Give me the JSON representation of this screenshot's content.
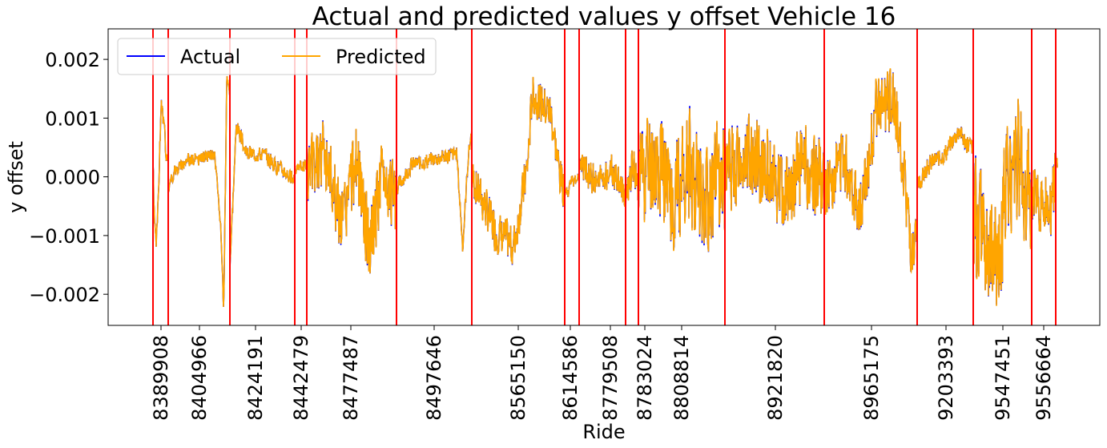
{
  "chart_data": {
    "type": "line",
    "title": "Actual and predicted values y offset Vehicle 16",
    "xlabel": "Ride",
    "ylabel": "y offset",
    "ylim": [
      -0.00253,
      0.00252
    ],
    "x_tick_labels": [
      "8389908",
      "8404966",
      "8424191",
      "8442479",
      "8477487",
      "8497646",
      "8565150",
      "8614586",
      "8779508",
      "8783024",
      "8808814",
      "8921820",
      "8965175",
      "9203393",
      "9547451",
      "9556664"
    ],
    "y_ticks": [
      {
        "value": 0.002,
        "label": "0.002"
      },
      {
        "value": 0.001,
        "label": "0.001"
      },
      {
        "value": 0.0,
        "label": "0.000"
      },
      {
        "value": -0.001,
        "label": "−0.001"
      },
      {
        "value": -0.002,
        "label": "−0.002"
      }
    ],
    "legend": {
      "placement": "top-left",
      "columns": 2
    },
    "grid": false,
    "ride_boundary_color": "#ff0000",
    "series": [
      {
        "name": "Actual",
        "color": "#0000ff"
      },
      {
        "name": "Predicted",
        "color": "#ffa500"
      }
    ],
    "segments": [
      {
        "profile": [
          [
            0,
            0.0002
          ],
          [
            0.1,
            -0.0008
          ],
          [
            0.25,
            -0.0011
          ],
          [
            0.4,
            0.0001
          ],
          [
            0.55,
            0.0012
          ],
          [
            0.75,
            0.0008
          ],
          [
            0.9,
            0.0002
          ],
          [
            1,
            0.0003
          ]
        ],
        "amp": 0.0002,
        "seed": 1
      },
      {
        "profile": [
          [
            0,
            -0.0002
          ],
          [
            0.1,
            0.0001
          ],
          [
            0.3,
            0.0003
          ],
          [
            0.5,
            0.0003
          ],
          [
            0.75,
            0.0004
          ],
          [
            0.85,
            -0.0008
          ],
          [
            0.9,
            -0.0023
          ],
          [
            0.95,
            0.0017
          ],
          [
            1,
            0.0014
          ]
        ],
        "amp": 0.00012,
        "seed": 2
      },
      {
        "profile": [
          [
            0,
            -0.0015
          ],
          [
            0.1,
            0.0009
          ],
          [
            0.25,
            0.0004
          ],
          [
            0.5,
            0.0004
          ],
          [
            0.7,
            0.0002
          ],
          [
            0.85,
            0.0001
          ],
          [
            1,
            -0.0001
          ]
        ],
        "amp": 0.00015,
        "seed": 3
      },
      {
        "profile": [
          [
            0,
            0.0001
          ],
          [
            0.5,
            0.0002
          ],
          [
            1,
            0.0002
          ]
        ],
        "amp": 0.00012,
        "seed": 4
      },
      {
        "profile": [
          [
            0,
            0.0
          ],
          [
            0.2,
            0.0004
          ],
          [
            0.4,
            -0.0008
          ],
          [
            0.55,
            0.0003
          ],
          [
            0.7,
            -0.0012
          ],
          [
            0.85,
            0.0001
          ],
          [
            1,
            -0.0005
          ]
        ],
        "amp": 0.0007,
        "seed": 5
      },
      {
        "profile": [
          [
            0,
            -0.0002
          ],
          [
            0.2,
            0.0002
          ],
          [
            0.5,
            0.0003
          ],
          [
            0.8,
            0.0004
          ],
          [
            0.88,
            -0.0012
          ],
          [
            0.95,
            0.0003
          ],
          [
            1,
            0.0008
          ]
        ],
        "amp": 0.00015,
        "seed": 6
      },
      {
        "profile": [
          [
            0,
            0.0
          ],
          [
            0.25,
            -0.0009
          ],
          [
            0.45,
            -0.0012
          ],
          [
            0.6,
            0.0002
          ],
          [
            0.65,
            0.0014
          ],
          [
            0.85,
            0.0011
          ],
          [
            0.95,
            0.0
          ],
          [
            1,
            -0.0002
          ]
        ],
        "amp": 0.0004,
        "seed": 7
      },
      {
        "profile": [
          [
            0,
            -0.0003
          ],
          [
            0.5,
            -0.0001
          ],
          [
            1,
            0.0
          ]
        ],
        "amp": 0.00015,
        "seed": 8
      },
      {
        "profile": [
          [
            0,
            0.0002
          ],
          [
            0.4,
            -0.0001
          ],
          [
            0.7,
            0.0001
          ],
          [
            1,
            -0.0003
          ]
        ],
        "amp": 0.0003,
        "seed": 9
      },
      {
        "profile": [
          [
            0,
            -0.0004
          ],
          [
            0.5,
            0.0002
          ],
          [
            1,
            -0.0002
          ]
        ],
        "amp": 0.0004,
        "seed": 10
      },
      {
        "profile": [
          [
            0,
            0.0001
          ],
          [
            0.2,
            0.0003
          ],
          [
            0.4,
            -0.0003
          ],
          [
            0.6,
            0.0002
          ],
          [
            0.8,
            -0.0004
          ],
          [
            1,
            0.0001
          ]
        ],
        "amp": 0.0011,
        "seed": 11
      },
      {
        "profile": [
          [
            0,
            0.0001
          ],
          [
            0.3,
            0.0004
          ],
          [
            0.6,
            -0.0003
          ],
          [
            0.8,
            0.0002
          ],
          [
            1,
            -0.0001
          ]
        ],
        "amp": 0.0008,
        "seed": 12
      },
      {
        "profile": [
          [
            0,
            -0.0003
          ],
          [
            0.2,
            0.0004
          ],
          [
            0.4,
            -0.0006
          ],
          [
            0.55,
            0.0011
          ],
          [
            0.75,
            0.0013
          ],
          [
            0.85,
            0.0002
          ],
          [
            0.95,
            -0.0015
          ],
          [
            1,
            -0.0012
          ]
        ],
        "amp": 0.0006,
        "seed": 13
      },
      {
        "profile": [
          [
            0,
            -0.0002
          ],
          [
            0.2,
            0.0002
          ],
          [
            0.5,
            0.0004
          ],
          [
            0.75,
            0.0008
          ],
          [
            0.85,
            0.0006
          ],
          [
            1,
            0.0005
          ]
        ],
        "amp": 0.00018,
        "seed": 14
      },
      {
        "profile": [
          [
            0,
            -0.0006
          ],
          [
            0.2,
            -0.0012
          ],
          [
            0.4,
            -0.0015
          ],
          [
            0.55,
            -0.0002
          ],
          [
            0.7,
            0.0004
          ],
          [
            0.85,
            0.0001
          ],
          [
            1,
            -0.0005
          ]
        ],
        "amp": 0.0012,
        "seed": 15
      },
      {
        "profile": [
          [
            0,
            -0.0002
          ],
          [
            0.3,
            -0.0005
          ],
          [
            0.6,
            -0.0004
          ],
          [
            0.8,
            -0.0006
          ],
          [
            1,
            0.0002
          ]
        ],
        "amp": 0.0006,
        "seed": 16
      },
      {
        "profile": [
          [
            0,
            0.0002
          ],
          [
            0.5,
            0.0004
          ],
          [
            1,
            0.0003
          ]
        ],
        "amp": 0.0003,
        "seed": 17
      }
    ]
  }
}
